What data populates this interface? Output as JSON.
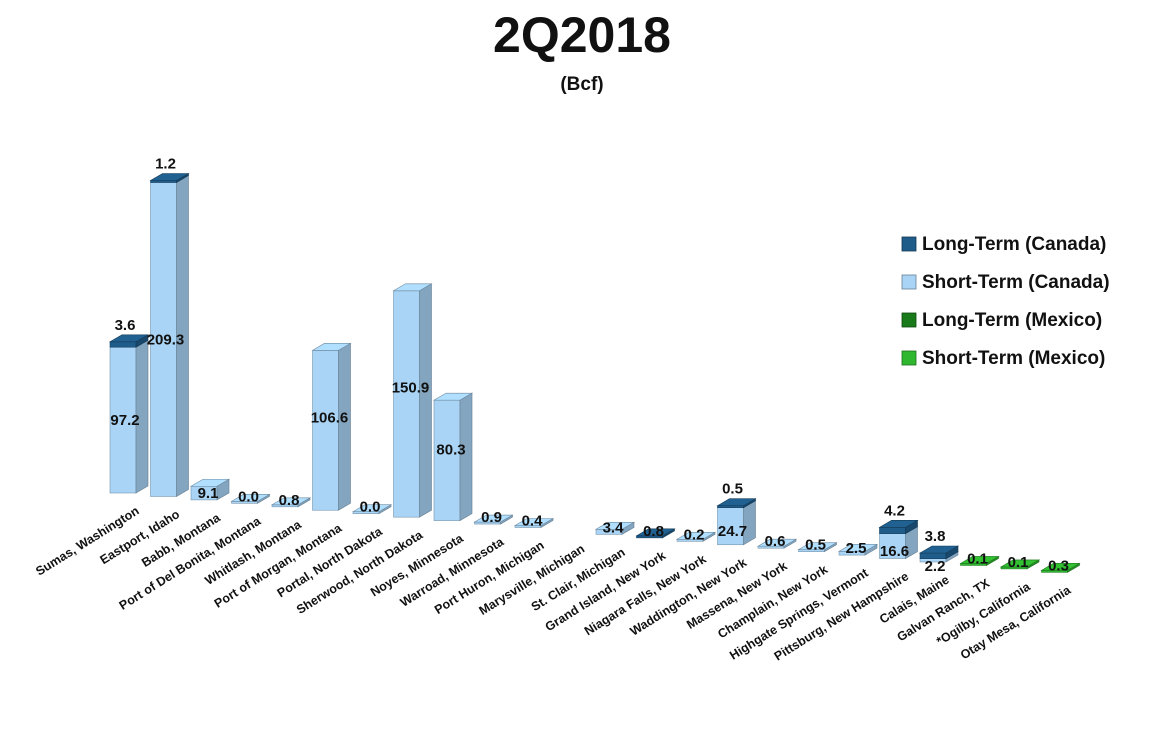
{
  "chart_data": {
    "type": "bar",
    "title": "2Q2018",
    "subtitle": "(Bcf)",
    "stacked": true,
    "categories": [
      "Sumas, Washington",
      "Eastport, Idaho",
      "Babb, Montana",
      "Port of Del Bonita, Montana",
      "Whitlash, Montana",
      "Port of Morgan, Montana",
      "Portal, North Dakota",
      "Sherwood, North Dakota",
      "Noyes, Minnesota",
      "Warroad, Minnesota",
      "Port Huron, Michigan",
      "Marysville, Michigan",
      "St. Clair, Michigan",
      "Grand Island, New York",
      "Niagara Falls, New York",
      "Waddington, New York",
      "Massena, New York",
      "Champlain, New York",
      "Highgate Springs, Vermont",
      "Pittsburg, New Hampshire",
      "Calais, Maine",
      "Galvan Ranch, TX",
      "*Ogilby, California",
      "Otay Mesa, California"
    ],
    "series": [
      {
        "name": "Long-Term (Canada)",
        "color": "#1f5c8a",
        "values": [
          3.6,
          1.2,
          0,
          0,
          0,
          0,
          0,
          0,
          0,
          0,
          0,
          0,
          0,
          0.8,
          0,
          0.5,
          0,
          0,
          0,
          4.2,
          3.8,
          0,
          0,
          0
        ]
      },
      {
        "name": "Short-Term (Canada)",
        "color": "#a9d4f5",
        "values": [
          97.2,
          209.3,
          9.1,
          0.0,
          0.8,
          106.6,
          0.0,
          150.9,
          80.3,
          0.9,
          0.4,
          0,
          3.4,
          0,
          0.2,
          24.7,
          0.6,
          0.5,
          2.5,
          16.6,
          2.2,
          0,
          0,
          0
        ]
      },
      {
        "name": "Long-Term (Mexico)",
        "color": "#187a18",
        "values": [
          0,
          0,
          0,
          0,
          0,
          0,
          0,
          0,
          0,
          0,
          0,
          0,
          0,
          0,
          0,
          0,
          0,
          0,
          0,
          0,
          0,
          0,
          0,
          0
        ]
      },
      {
        "name": "Short-Term (Mexico)",
        "color": "#2fb82f",
        "values": [
          0,
          0,
          0,
          0,
          0,
          0,
          0,
          0,
          0,
          0,
          0,
          0,
          0,
          0,
          0,
          0,
          0,
          0,
          0,
          0,
          0,
          0.1,
          0.1,
          0.3
        ]
      }
    ],
    "data_labels": [
      [
        "3.6",
        "97.2"
      ],
      [
        "1.2",
        "209.3"
      ],
      [
        "9.1"
      ],
      [
        "0.0"
      ],
      [
        "0.8"
      ],
      [
        "106.6"
      ],
      [
        "0.0"
      ],
      [
        "150.9"
      ],
      [
        "80.3"
      ],
      [
        "0.9"
      ],
      [
        "0.4"
      ],
      [],
      [
        "3.4"
      ],
      [
        "0.8"
      ],
      [
        "0.2"
      ],
      [
        "0.5",
        "24.7"
      ],
      [
        "0.6"
      ],
      [
        "0.5"
      ],
      [
        "2.5"
      ],
      [
        "4.2",
        "16.6"
      ],
      [
        "3.8",
        "2.2"
      ],
      [
        "0.1"
      ],
      [
        "0.1"
      ],
      [
        "0.3"
      ]
    ],
    "legend_position": "right",
    "grid": false
  }
}
